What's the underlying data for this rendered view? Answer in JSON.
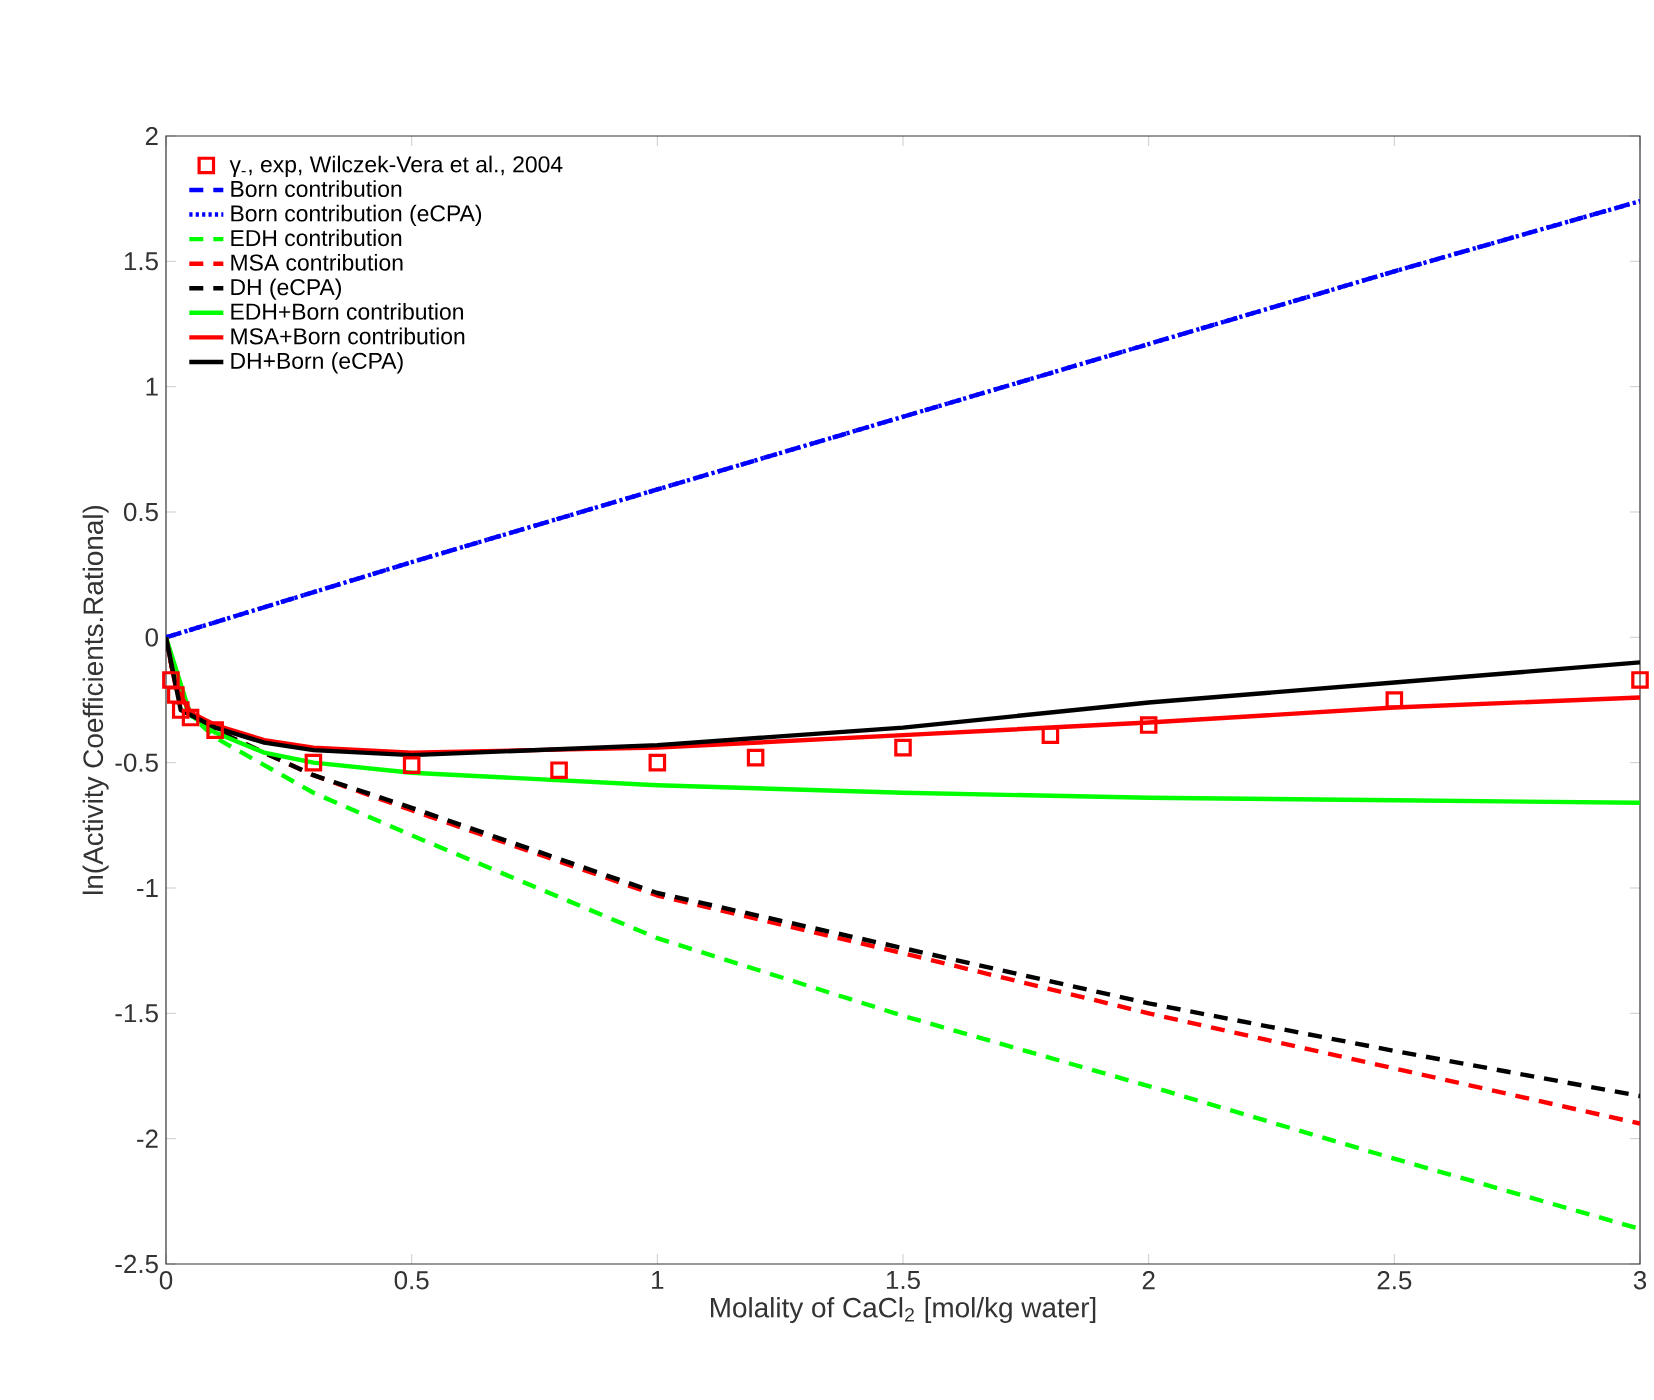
{
  "chart_data": {
    "type": "line",
    "xlabel": "Molality of CaCl$_{2}$ [mol/kg water]",
    "ylabel": "ln(Activity Coefficients.Rational)",
    "xlim": [
      0,
      3
    ],
    "ylim": [
      -2.5,
      2
    ],
    "xticks": [
      0,
      0.5,
      1,
      1.5,
      2,
      2.5,
      3
    ],
    "yticks": [
      -2.5,
      -2,
      -1.5,
      -1,
      -0.5,
      0,
      0.5,
      1,
      1.5,
      2
    ],
    "legend": "top left",
    "series": [
      {
        "name": "γ$_{-}$, exp, Wilczek-Vera et al., 2004",
        "type": "scatter",
        "marker": "square",
        "color": "#ff0000",
        "x": [
          0.01,
          0.02,
          0.03,
          0.05,
          0.1,
          0.3,
          0.5,
          0.8,
          1.0,
          1.2,
          1.5,
          1.8,
          2.0,
          2.5,
          3.0
        ],
        "values": [
          -0.17,
          -0.23,
          -0.29,
          -0.32,
          -0.37,
          -0.5,
          -0.51,
          -0.53,
          -0.5,
          -0.48,
          -0.44,
          -0.39,
          -0.35,
          -0.25,
          -0.17
        ]
      },
      {
        "name": "Born contribution",
        "type": "line",
        "line_style": "dashed",
        "color": "#0000ff",
        "x": [
          0,
          0.5,
          1,
          1.5,
          2,
          2.5,
          3
        ],
        "values": [
          0,
          0.3,
          0.59,
          0.88,
          1.17,
          1.46,
          1.74
        ]
      },
      {
        "name": "Born contribution (eCPA)",
        "type": "line",
        "line_style": "dotted",
        "color": "#0000ff",
        "x": [
          0,
          0.5,
          1,
          1.5,
          2,
          2.5,
          3
        ],
        "values": [
          0,
          0.3,
          0.59,
          0.88,
          1.17,
          1.46,
          1.74
        ]
      },
      {
        "name": "EDH contribution",
        "type": "line",
        "line_style": "dashed",
        "color": "#00ff00",
        "x": [
          0,
          0.02,
          0.05,
          0.1,
          0.3,
          0.5,
          1,
          1.5,
          2,
          2.5,
          3
        ],
        "values": [
          0,
          -0.2,
          -0.31,
          -0.4,
          -0.62,
          -0.79,
          -1.2,
          -1.51,
          -1.79,
          -2.08,
          -2.36
        ]
      },
      {
        "name": "MSA contribution",
        "type": "line",
        "line_style": "dashed",
        "color": "#ff0000",
        "x": [
          0,
          0.02,
          0.05,
          0.1,
          0.3,
          0.5,
          1,
          1.5,
          2,
          2.5,
          3
        ],
        "values": [
          0,
          -0.2,
          -0.3,
          -0.37,
          -0.55,
          -0.69,
          -1.03,
          -1.26,
          -1.5,
          -1.72,
          -1.94
        ]
      },
      {
        "name": "DH (eCPA)",
        "type": "line",
        "line_style": "dashed",
        "color": "#000000",
        "x": [
          0,
          0.02,
          0.05,
          0.1,
          0.3,
          0.5,
          1,
          1.5,
          2,
          2.5,
          3
        ],
        "values": [
          0,
          -0.2,
          -0.3,
          -0.37,
          -0.55,
          -0.68,
          -1.02,
          -1.24,
          -1.46,
          -1.65,
          -1.83
        ]
      },
      {
        "name": "EDH+Born contribution",
        "type": "line",
        "line_style": "solid",
        "color": "#00ff00",
        "x": [
          0,
          0.02,
          0.05,
          0.1,
          0.2,
          0.3,
          0.5,
          1,
          1.5,
          2,
          2.5,
          3
        ],
        "values": [
          0,
          null,
          -0.31,
          -0.38,
          -0.46,
          -0.5,
          -0.54,
          -0.59,
          -0.62,
          -0.64,
          -0.65,
          -0.66
        ]
      },
      {
        "name": "MSA+Born contribution",
        "type": "line",
        "line_style": "solid",
        "color": "#ff0000",
        "x": [
          0,
          0.02,
          0.05,
          0.1,
          0.2,
          0.3,
          0.5,
          1,
          1.5,
          2,
          2.5,
          3
        ],
        "values": [
          0,
          -0.2,
          -0.3,
          -0.35,
          -0.41,
          -0.44,
          -0.46,
          -0.44,
          -0.39,
          -0.34,
          -0.28,
          -0.24
        ]
      },
      {
        "name": "DH+Born (eCPA)",
        "type": "line",
        "line_style": "solid",
        "color": "#000000",
        "x": [
          0,
          0.03,
          0.1,
          0.2,
          0.3,
          0.5,
          1,
          1.5,
          2,
          2.5,
          3
        ],
        "values": [
          0,
          -0.29,
          -0.36,
          -0.42,
          -0.45,
          -0.47,
          -0.43,
          -0.36,
          -0.26,
          -0.18,
          -0.1
        ]
      }
    ]
  }
}
